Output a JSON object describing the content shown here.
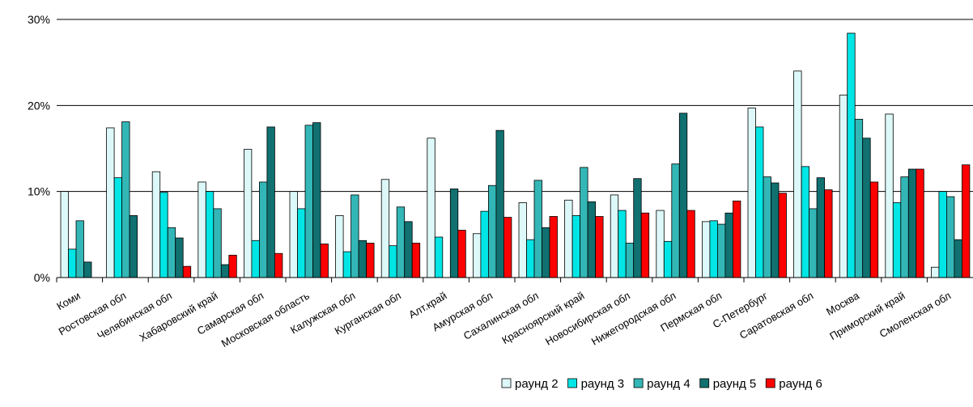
{
  "chart_data": {
    "type": "bar",
    "title": "",
    "xlabel": "",
    "ylabel": "",
    "ylim": [
      0,
      30
    ],
    "y_ticks": [
      "0%",
      "10%",
      "20%",
      "30%"
    ],
    "grid": true,
    "legend_position": "bottom-right",
    "categories": [
      "Коми",
      "Ростовская обл",
      "Челябинская обл",
      "Хабаровский край",
      "Самарская обл",
      "Московская область",
      "Калужская обл",
      "Курганская обл",
      "Алт.край",
      "Амурская обл",
      "Сахалинская обл",
      "Красноярский край",
      "Новосибирская обл",
      "Нижегородская обл",
      "Пермская обл",
      "С-Петербург",
      "Саратовская обл",
      "Москва",
      "Приморский край",
      "Смоленская обл"
    ],
    "series": [
      {
        "name": "раунд 2",
        "color": "#ddf8f8",
        "values": [
          10.0,
          17.4,
          12.3,
          11.1,
          14.9,
          10.0,
          7.2,
          11.4,
          16.2,
          5.1,
          8.7,
          9.0,
          9.6,
          7.8,
          6.5,
          19.7,
          24.0,
          21.2,
          19.0,
          1.2
        ]
      },
      {
        "name": "раунд 3",
        "color": "#00e5e5",
        "values": [
          3.3,
          11.6,
          9.9,
          10.0,
          4.3,
          8.0,
          3.0,
          3.7,
          4.7,
          7.7,
          4.4,
          7.2,
          7.8,
          4.2,
          6.6,
          17.5,
          12.9,
          28.4,
          8.7,
          10.0
        ]
      },
      {
        "name": "раунд 4",
        "color": "#33b6b6",
        "values": [
          6.6,
          18.1,
          5.8,
          8.0,
          11.1,
          17.7,
          9.6,
          8.2,
          null,
          10.7,
          11.3,
          12.8,
          4.0,
          13.2,
          6.2,
          11.7,
          8.0,
          18.4,
          11.7,
          9.4
        ]
      },
      {
        "name": "раунд 5",
        "color": "#117070",
        "values": [
          1.8,
          7.2,
          4.6,
          1.5,
          17.5,
          18.0,
          4.3,
          6.5,
          10.3,
          17.1,
          5.8,
          8.8,
          11.5,
          19.1,
          7.5,
          11.0,
          11.6,
          16.2,
          12.6,
          4.4
        ]
      },
      {
        "name": "раунд 6",
        "color": "#ff0000",
        "values": [
          null,
          null,
          1.3,
          2.6,
          2.8,
          3.9,
          4.0,
          4.0,
          5.5,
          7.0,
          7.1,
          7.1,
          7.5,
          7.8,
          8.9,
          9.8,
          10.2,
          11.1,
          12.6,
          13.1
        ]
      }
    ]
  }
}
